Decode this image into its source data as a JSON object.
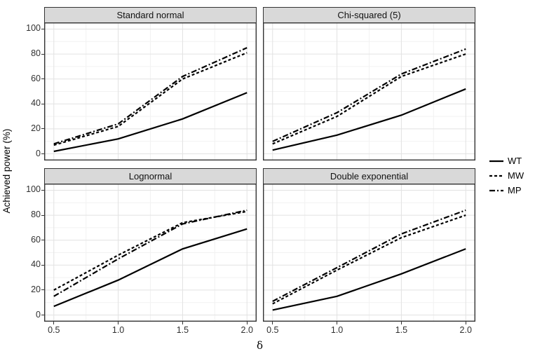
{
  "figure": {
    "y_axis_title": "Achieved power (%)",
    "x_axis_title": "δ",
    "y_tick_labels": [
      "0",
      "20",
      "40",
      "60",
      "80",
      "100"
    ],
    "x_tick_labels": [
      "0.5",
      "1.0",
      "1.5",
      "2.0"
    ],
    "legend": {
      "items": [
        {
          "label": "WT",
          "linetype": "solid"
        },
        {
          "label": "MW",
          "linetype": "dashed"
        },
        {
          "label": "MP",
          "linetype": "dotdash"
        }
      ]
    },
    "colors": {
      "line": "#000000",
      "strip_background": "#d9d9d9",
      "panel_border": "#333333",
      "grid_major": "#e2e2e2",
      "grid_minor": "#f2f2f2",
      "tick_text": "#303030"
    }
  },
  "chart_data": {
    "type": "line",
    "title": "",
    "xlabel": "δ",
    "ylabel": "Achieved power (%)",
    "x": [
      0.5,
      1.0,
      1.5,
      2.0
    ],
    "x_ticks": [
      0.5,
      1.0,
      1.5,
      2.0
    ],
    "y_ticks": [
      0,
      20,
      40,
      60,
      80,
      100
    ],
    "xlim": [
      0.425,
      2.075
    ],
    "ylim": [
      -5.3,
      105.3
    ],
    "grid": true,
    "legend_position": "right",
    "facets": [
      {
        "title": "Standard normal",
        "series": [
          {
            "name": "WT",
            "linetype": "solid",
            "values": [
              2,
              12,
              28,
              49
            ]
          },
          {
            "name": "MW",
            "linetype": "dashed",
            "values": [
              7,
              22,
              60,
              81
            ]
          },
          {
            "name": "MP",
            "linetype": "dotdash",
            "values": [
              8,
              24,
              62,
              85
            ]
          }
        ]
      },
      {
        "title": "Chi-squared (5)",
        "series": [
          {
            "name": "WT",
            "linetype": "solid",
            "values": [
              3,
              15,
              31,
              52
            ]
          },
          {
            "name": "MW",
            "linetype": "dashed",
            "values": [
              8,
              30,
              62,
              80
            ]
          },
          {
            "name": "MP",
            "linetype": "dotdash",
            "values": [
              10,
              33,
              64,
              84
            ]
          }
        ]
      },
      {
        "title": "Lognormal",
        "series": [
          {
            "name": "WT",
            "linetype": "solid",
            "values": [
              7,
              28,
              53,
              69
            ]
          },
          {
            "name": "MW",
            "linetype": "dashed",
            "values": [
              20,
              48,
              74,
              83
            ]
          },
          {
            "name": "MP",
            "linetype": "dotdash",
            "values": [
              15,
              45,
              73,
              84
            ]
          }
        ]
      },
      {
        "title": "Double exponential",
        "series": [
          {
            "name": "WT",
            "linetype": "solid",
            "values": [
              4,
              15,
              33,
              53
            ]
          },
          {
            "name": "MW",
            "linetype": "dashed",
            "values": [
              9,
              36,
              62,
              80
            ]
          },
          {
            "name": "MP",
            "linetype": "dotdash",
            "values": [
              11,
              38,
              65,
              84
            ]
          }
        ]
      }
    ]
  }
}
